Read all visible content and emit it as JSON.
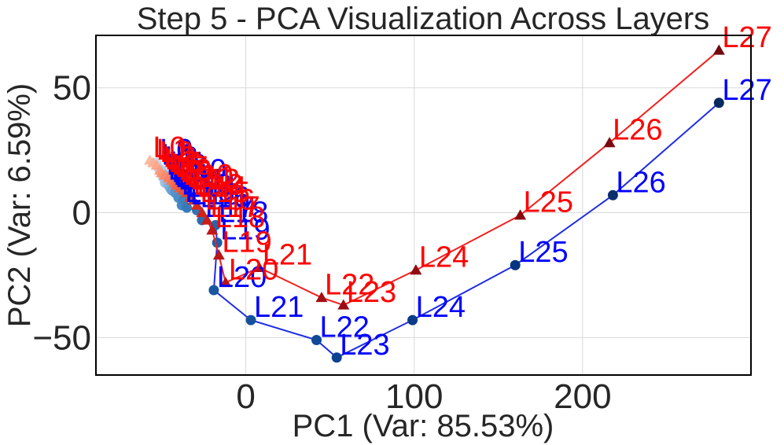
{
  "chart_data": {
    "type": "line",
    "title": "Step 5 - PCA Visualization Across Layers",
    "xlabel": "PC1 (Var: 85.53%)",
    "ylabel": "PC2 (Var: 6.59%)",
    "xlim": [
      -89,
      300
    ],
    "ylim": [
      -65,
      71
    ],
    "xticks": [
      0,
      100,
      200
    ],
    "xtick_labels": [
      "0",
      "100",
      "200"
    ],
    "yticks": [
      -50,
      0,
      50
    ],
    "ytick_labels": [
      "−50",
      "0",
      "50"
    ],
    "grid": true,
    "series": [
      {
        "name": "blue",
        "marker": "circle",
        "line_color": "#1f2ee0",
        "label_color": "#0000ff",
        "marker_colors": [
          "#c6dbef",
          "#bcd5ec",
          "#b2cfe9",
          "#a8c8e6",
          "#9ec2e3",
          "#94bce0",
          "#8ab5dc",
          "#80afd9",
          "#76a8d5",
          "#6ca2d2",
          "#629bce",
          "#5895ca",
          "#4e8ec6",
          "#4488c2",
          "#3e81be",
          "#377aba",
          "#3173b5",
          "#2b6cb0",
          "#2565ab",
          "#1f5ea6",
          "#1a57a1",
          "#15509b",
          "#104995",
          "#0c428f",
          "#0a3b88",
          "#083581",
          "#08306b",
          "#062a5e"
        ],
        "labels": [
          "L0",
          "L1",
          "L2",
          "L3",
          "L4",
          "L5",
          "L6",
          "L7",
          "L8",
          "L9",
          "L10",
          "L11",
          "L12",
          "L13",
          "L14",
          "L15",
          "L16",
          "L17",
          "L18",
          "L19",
          "L20",
          "L21",
          "L22",
          "L23",
          "L24",
          "L25",
          "L26",
          "L27"
        ],
        "x": [
          -53,
          -52,
          -50,
          -49,
          -48,
          -47,
          -46,
          -45,
          -45,
          -44,
          -43,
          -42,
          -40,
          -38,
          -37,
          -35,
          -29,
          -26,
          -18,
          -17,
          -19,
          3,
          42,
          54,
          99,
          160,
          218,
          281
        ],
        "y": [
          20,
          18,
          17,
          14,
          12,
          15,
          11,
          10,
          14,
          9,
          12,
          8,
          6,
          3,
          5,
          2,
          1,
          -3,
          -5,
          -12,
          -31,
          -43,
          -51,
          -58,
          -43,
          -21,
          7,
          44
        ]
      },
      {
        "name": "red",
        "marker": "triangle",
        "line_color": "#f22020",
        "label_color": "#ff0000",
        "marker_colors": [
          "#fcbba1",
          "#fcb196",
          "#fca78b",
          "#fc9d80",
          "#fb9375",
          "#fb896b",
          "#fa7f60",
          "#f97556",
          "#f66b4d",
          "#f36145",
          "#ef573d",
          "#eb4d35",
          "#e6432e",
          "#e13a28",
          "#db3223",
          "#d52a1f",
          "#cf231c",
          "#c91d19",
          "#c21817",
          "#bb1516",
          "#b41315",
          "#ac1114",
          "#a30f13",
          "#9a0d12",
          "#910c11",
          "#870a10",
          "#7d090f",
          "#73080e"
        ],
        "labels": [
          "L0",
          "L1",
          "L2",
          "L3",
          "L4",
          "L5",
          "L6",
          "L7",
          "L8",
          "L9",
          "L10",
          "L11",
          "L12",
          "L13",
          "L14",
          "L15",
          "L16",
          "L17",
          "L18",
          "L19",
          "L20",
          "L21",
          "L22",
          "L23",
          "L24",
          "L25",
          "L26",
          "L27"
        ],
        "x": [
          -57,
          -55,
          -53,
          -51,
          -50,
          -48,
          -46,
          -44,
          -42,
          -41,
          -39,
          -37,
          -35,
          -33,
          -31,
          -29,
          -26,
          -23,
          -20,
          -16,
          -12,
          8,
          45,
          58,
          101,
          163,
          216,
          281
        ],
        "y": [
          21,
          20,
          19,
          17,
          16,
          15,
          14,
          13,
          12,
          11,
          10,
          9,
          8,
          6,
          5,
          3,
          0,
          -3,
          -7,
          -17,
          -28,
          -22,
          -34,
          -37,
          -23,
          -1,
          28,
          65
        ]
      }
    ]
  }
}
